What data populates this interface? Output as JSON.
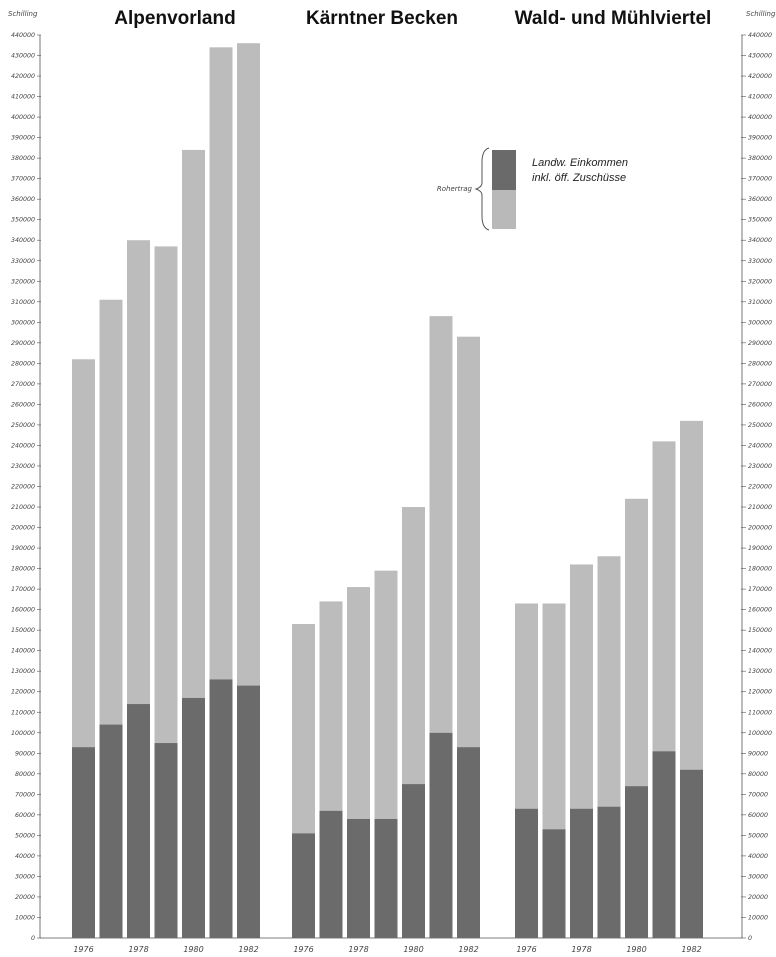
{
  "chart_data": {
    "type": "bar",
    "stacked": true,
    "unit_label": "Schilling",
    "ylim": [
      0,
      440000
    ],
    "ytick_step": 10000,
    "groups": [
      {
        "title": "Alpenvorland",
        "years": [
          1976,
          1977,
          1978,
          1979,
          1980,
          1981,
          1982
        ],
        "year_labels_shown": [
          "1976",
          "1978",
          "1980",
          "1982"
        ],
        "landw_einkommen": [
          93000,
          104000,
          114000,
          95000,
          117000,
          126000,
          123000
        ],
        "rohertrag": [
          282000,
          311000,
          340000,
          337000,
          384000,
          434000,
          436000
        ]
      },
      {
        "title": "Kärntner Becken",
        "years": [
          1976,
          1977,
          1978,
          1979,
          1980,
          1981,
          1982
        ],
        "year_labels_shown": [
          "1976",
          "1978",
          "1980",
          "1982"
        ],
        "landw_einkommen": [
          51000,
          62000,
          58000,
          58000,
          75000,
          100000,
          93000
        ],
        "rohertrag": [
          153000,
          164000,
          171000,
          179000,
          210000,
          303000,
          293000
        ]
      },
      {
        "title": "Wald- und Mühlviertel",
        "years": [
          1976,
          1977,
          1978,
          1979,
          1980,
          1981,
          1982
        ],
        "year_labels_shown": [
          "1976",
          "1978",
          "1980",
          "1982"
        ],
        "landw_einkommen": [
          63000,
          53000,
          63000,
          64000,
          74000,
          91000,
          82000
        ],
        "rohertrag": [
          163000,
          163000,
          182000,
          186000,
          214000,
          242000,
          252000
        ]
      }
    ],
    "legend": {
      "placement": "top-center-right",
      "bracket_label": "Rohertrag",
      "entries": [
        {
          "label": "Landw. Einkommen",
          "color": "#6a6a6a"
        },
        {
          "label": "inkl. öff. Zuschüsse",
          "color": "#b9b9b9"
        }
      ]
    },
    "colors": {
      "dark": "#6b6b6b",
      "light": "#bcbcbc",
      "axis": "#555555"
    }
  }
}
